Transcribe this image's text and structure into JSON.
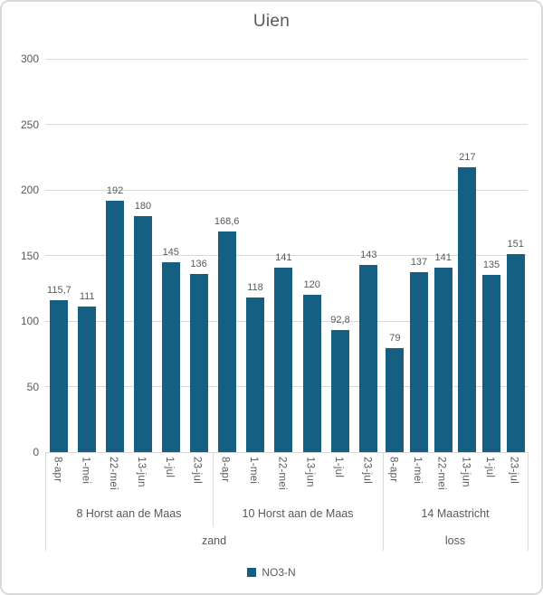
{
  "title": "Uien",
  "colors": {
    "bar": "#156082",
    "grid": "#d9d9d9",
    "text": "#595959",
    "frame_border": "#d9d9d9"
  },
  "chart_data": {
    "type": "bar",
    "title": "Uien",
    "series_name": "NO3-N",
    "ylim": [
      0,
      300
    ],
    "yticks": [
      0,
      50,
      100,
      150,
      200,
      250,
      300
    ],
    "grid": true,
    "legend_position": "bottom",
    "bar_color": "#156082",
    "categories": [
      "8-apr",
      "1-mei",
      "22-mei",
      "13-jun",
      "1-jul",
      "23-jul"
    ],
    "groups": [
      {
        "label": "8 Horst aan de Maas",
        "values": [
          115.7,
          111,
          192,
          180,
          145,
          136
        ],
        "value_labels": [
          "115,7",
          "111",
          "192",
          "180",
          "145",
          "136"
        ]
      },
      {
        "label": "10 Horst aan de Maas",
        "values": [
          168.6,
          118,
          141,
          120,
          92.8,
          143
        ],
        "value_labels": [
          "168,6",
          "118",
          "141",
          "120",
          "92,8",
          "143"
        ]
      },
      {
        "label": "14 Maastricht",
        "values": [
          79,
          137,
          141,
          217,
          135,
          151
        ],
        "value_labels": [
          "79",
          "137",
          "141",
          "217",
          "135",
          "151"
        ]
      }
    ],
    "outer_groups": [
      {
        "label": "zand",
        "span": 2
      },
      {
        "label": "loss",
        "span": 1
      }
    ]
  }
}
